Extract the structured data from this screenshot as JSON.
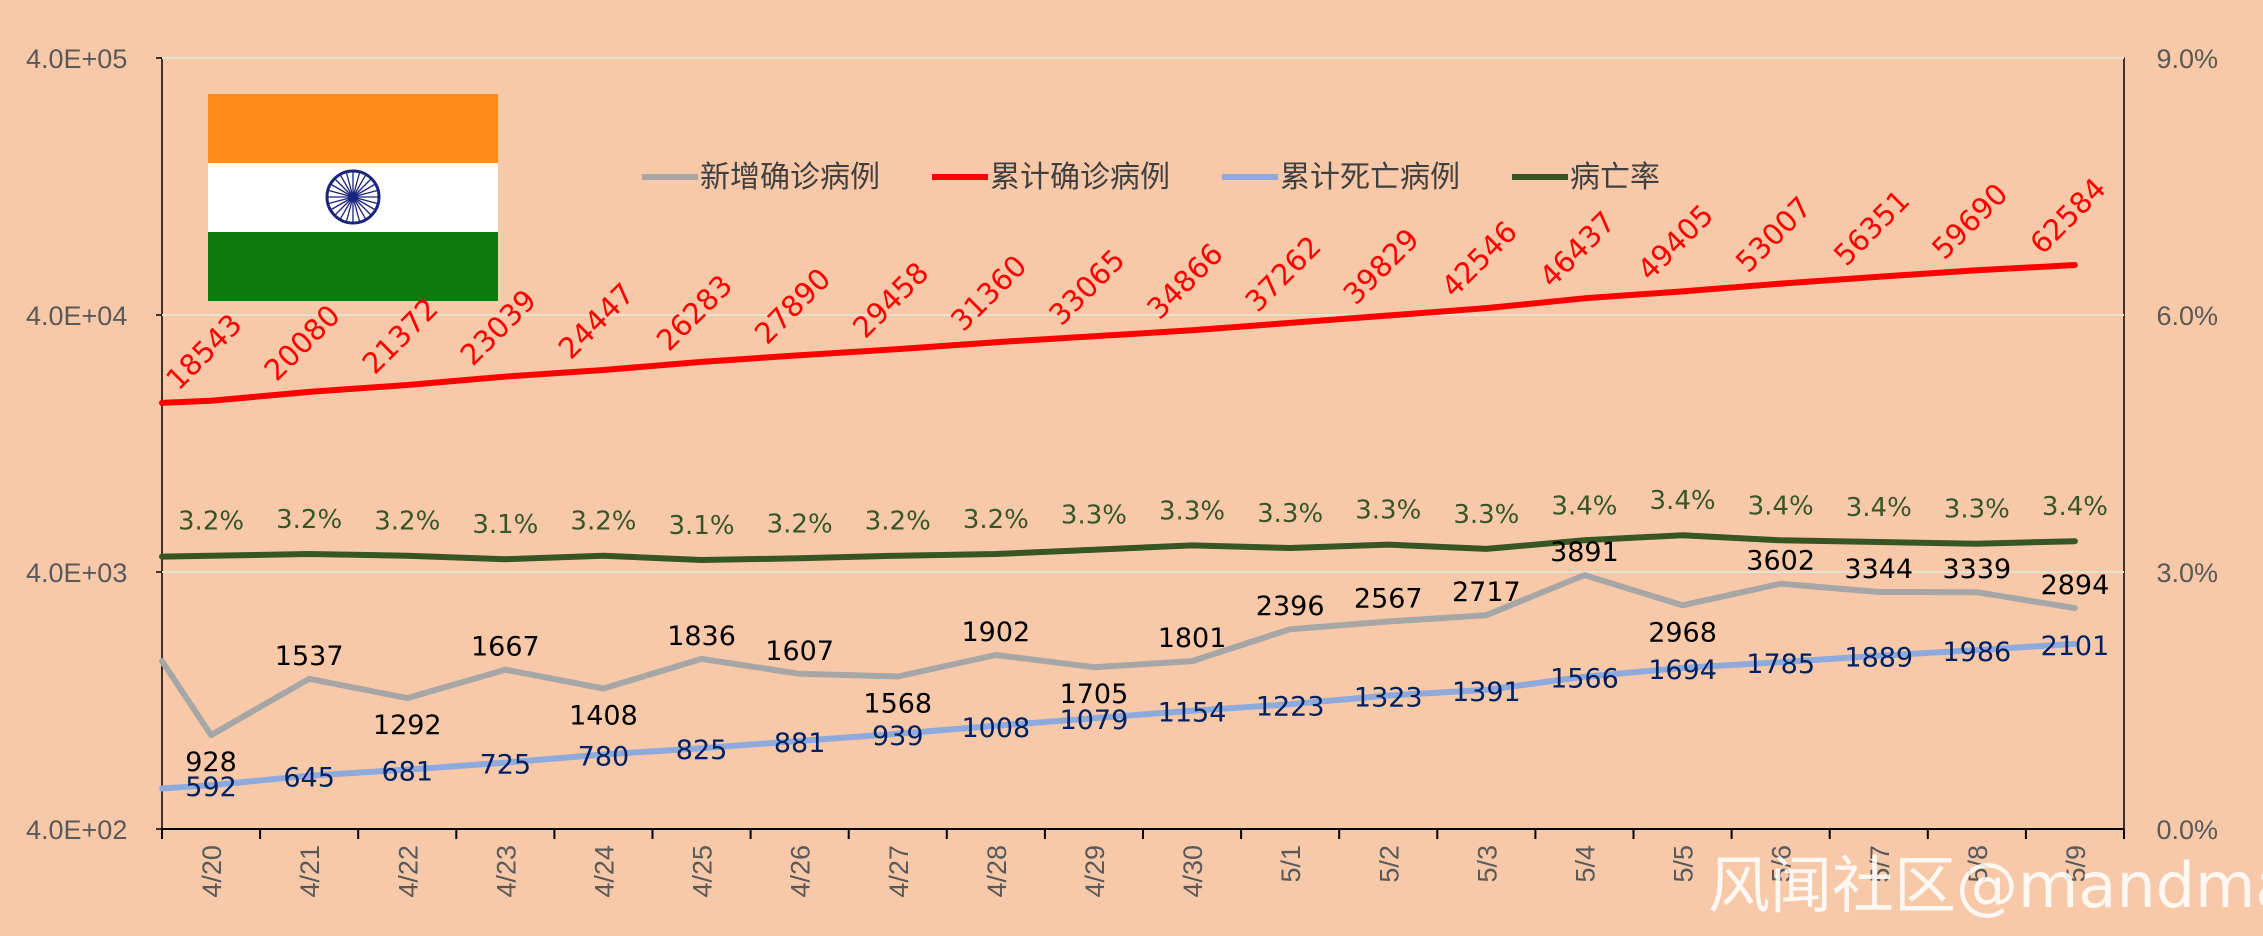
{
  "chart_data": {
    "type": "line",
    "categories": [
      "4/20",
      "4/21",
      "4/22",
      "4/23",
      "4/24",
      "4/25",
      "4/26",
      "4/27",
      "4/28",
      "4/29",
      "4/30",
      "5/1",
      "5/2",
      "5/3",
      "5/4",
      "5/5",
      "5/6",
      "5/7",
      "5/8",
      "5/9"
    ],
    "series": [
      {
        "name": "新增确诊病例",
        "axis": "left-log",
        "color": "#A6A6A6",
        "values": [
          928,
          1537,
          1292,
          1667,
          1408,
          1836,
          1607,
          1568,
          1902,
          1705,
          1801,
          2396,
          2567,
          2717,
          3891,
          2968,
          3602,
          3344,
          3339,
          2894
        ],
        "labels": [
          "928",
          "1537",
          "1292",
          "1667",
          "1408",
          "1836",
          "1607",
          "1568",
          "1902",
          "1705",
          "1801",
          "2396",
          "2567",
          "2717",
          "3891",
          "2968",
          "3602",
          "3344",
          "3339",
          "2894"
        ],
        "label_color": "#000000"
      },
      {
        "name": "累计确诊病例",
        "axis": "left-log",
        "color": "#FF0000",
        "values": [
          18543,
          20080,
          21372,
          23039,
          24447,
          26283,
          27890,
          29458,
          31360,
          33065,
          34866,
          37262,
          39829,
          42546,
          46437,
          49405,
          53007,
          56351,
          59690,
          62584
        ],
        "labels": [
          "18543",
          "20080",
          "21372",
          "23039",
          "24447",
          "26283",
          "27890",
          "29458",
          "31360",
          "33065",
          "34866",
          "37262",
          "39829",
          "42546",
          "46437",
          "49405",
          "53007",
          "56351",
          "59690",
          "62584"
        ],
        "label_color": "#FF0000"
      },
      {
        "name": "累计死亡病例",
        "axis": "left-log",
        "color": "#8EA9DB",
        "values": [
          592,
          645,
          681,
          725,
          780,
          825,
          881,
          939,
          1008,
          1079,
          1154,
          1223,
          1323,
          1391,
          1566,
          1694,
          1785,
          1889,
          1986,
          2101
        ],
        "labels": [
          "592",
          "645",
          "681",
          "725",
          "780",
          "825",
          "881",
          "939",
          "1008",
          "1079",
          "1154",
          "1223",
          "1323",
          "1391",
          "1566",
          "1694",
          "1785",
          "1889",
          "1986",
          "2101"
        ],
        "label_color": "#002060"
      },
      {
        "name": "病亡率",
        "axis": "right",
        "color": "#375623",
        "values": [
          3.19,
          3.21,
          3.19,
          3.15,
          3.19,
          3.14,
          3.16,
          3.19,
          3.21,
          3.26,
          3.31,
          3.28,
          3.32,
          3.27,
          3.37,
          3.43,
          3.37,
          3.35,
          3.33,
          3.36
        ],
        "labels": [
          "3.2%",
          "3.2%",
          "3.2%",
          "3.1%",
          "3.2%",
          "3.1%",
          "3.2%",
          "3.2%",
          "3.2%",
          "3.3%",
          "3.3%",
          "3.3%",
          "3.3%",
          "3.3%",
          "3.4%",
          "3.4%",
          "3.4%",
          "3.4%",
          "3.3%",
          "3.4%"
        ],
        "label_color": "#375623"
      }
    ],
    "left_axis": {
      "scale": "log",
      "ylim": [
        400,
        400000
      ],
      "ticks": [
        400,
        4000,
        40000,
        400000
      ],
      "tick_labels": [
        "4.0E+02",
        "4.0E+03",
        "4.0E+04",
        "4.0E+05"
      ]
    },
    "right_axis": {
      "ylim": [
        0,
        9
      ],
      "ticks": [
        0,
        3,
        6,
        9
      ],
      "tick_labels": [
        "0.0%",
        "3.0%",
        "6.0%",
        "9.0%"
      ]
    },
    "legend_position": "top",
    "grid": true,
    "flag": "india-flag",
    "watermark": "风闻社区@mandman",
    "colors": {
      "background": "#F8C9A9",
      "gridline": "#E8E0D0",
      "axis": "#000000"
    }
  }
}
